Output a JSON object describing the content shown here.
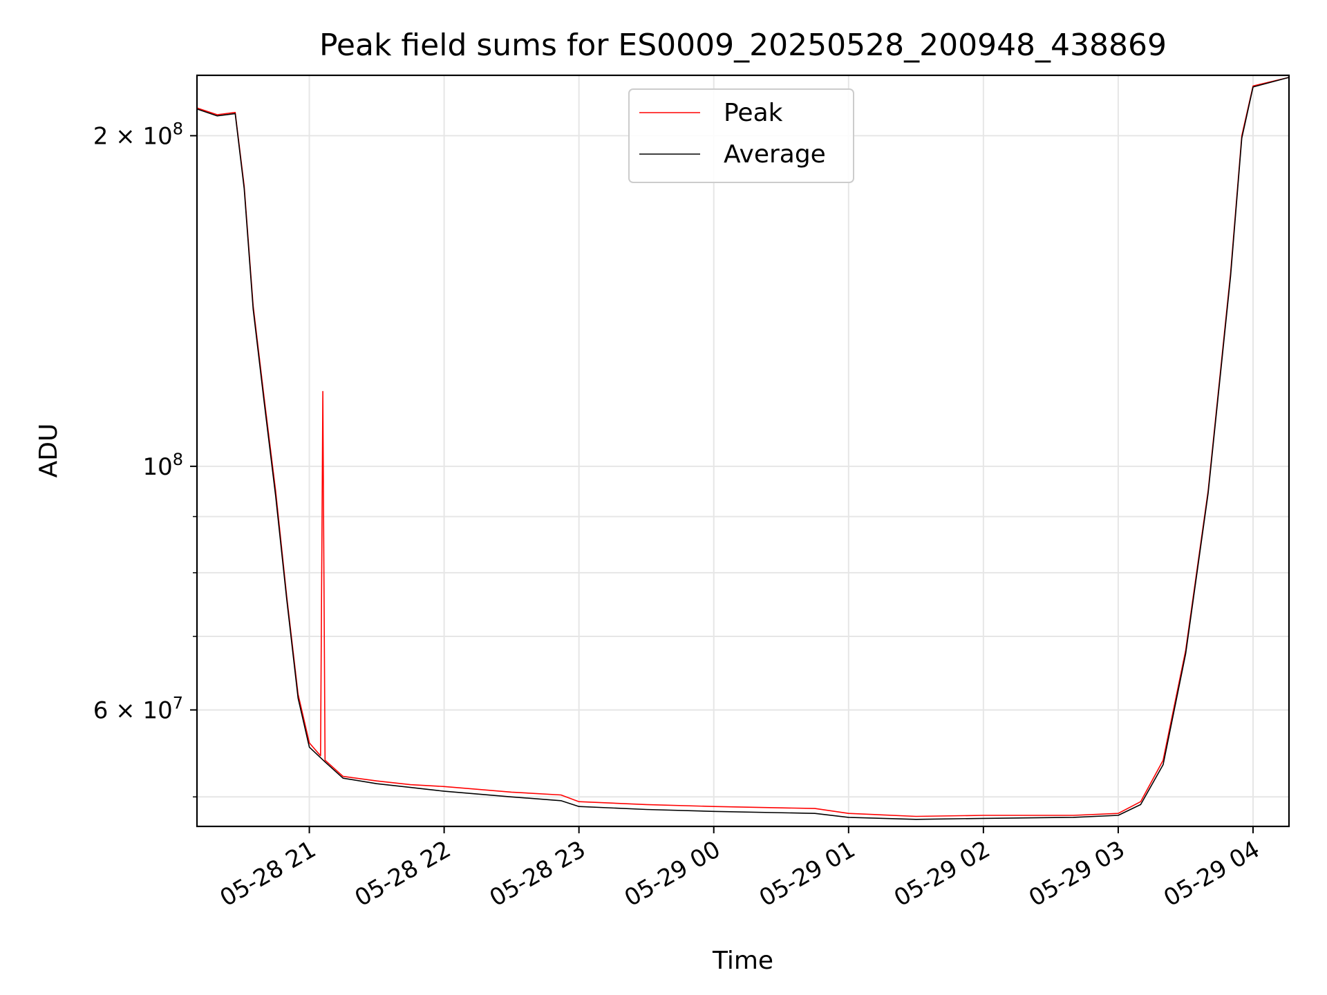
{
  "chart_data": {
    "type": "line",
    "title": "Peak field sums for ES0009_20250528_200948_438869",
    "xlabel": "Time",
    "ylabel": "ADU",
    "y_scale": "log",
    "grid": true,
    "legend_position": "upper center",
    "xlim": [
      "2025-05-28 20:10",
      "2025-05-29 04:16"
    ],
    "ylim": [
      47000000,
      227000000
    ],
    "x_ticks": [
      {
        "time": "2025-05-28 21:00",
        "label": "05-28 21"
      },
      {
        "time": "2025-05-28 22:00",
        "label": "05-28 22"
      },
      {
        "time": "2025-05-28 23:00",
        "label": "05-28 23"
      },
      {
        "time": "2025-05-29 00:00",
        "label": "05-29 00"
      },
      {
        "time": "2025-05-29 01:00",
        "label": "05-29 01"
      },
      {
        "time": "2025-05-29 02:00",
        "label": "05-29 02"
      },
      {
        "time": "2025-05-29 03:00",
        "label": "05-29 03"
      },
      {
        "time": "2025-05-29 04:00",
        "label": "05-29 04"
      }
    ],
    "y_major_ticks": [
      {
        "value": 60000000,
        "base": "6",
        "exp": "7"
      },
      {
        "value": 100000000,
        "base": "10",
        "exp": "8"
      },
      {
        "value": 200000000,
        "base": "2",
        "exp": "8"
      }
    ],
    "y_minor_ticks": [
      50000000,
      70000000,
      80000000,
      90000000
    ],
    "series": [
      {
        "name": "Peak",
        "color": "#ff0000",
        "points": [
          [
            "2025-05-28 20:10",
            212000000
          ],
          [
            "2025-05-28 20:19",
            209000000
          ],
          [
            "2025-05-28 20:27",
            210000000
          ],
          [
            "2025-05-28 20:31",
            180000000
          ],
          [
            "2025-05-28 20:35",
            140000000
          ],
          [
            "2025-05-28 20:40",
            115000000
          ],
          [
            "2025-05-28 20:45",
            95000000
          ],
          [
            "2025-05-28 20:50",
            76000000
          ],
          [
            "2025-05-28 20:55",
            62000000
          ],
          [
            "2025-05-28 21:00",
            56000000
          ],
          [
            "2025-05-28 21:05",
            54500000
          ],
          [
            "2025-05-28 21:06",
            117000000
          ],
          [
            "2025-05-28 21:07",
            54000000
          ],
          [
            "2025-05-28 21:15",
            52200000
          ],
          [
            "2025-05-28 21:30",
            51700000
          ],
          [
            "2025-05-28 21:45",
            51300000
          ],
          [
            "2025-05-28 22:00",
            51100000
          ],
          [
            "2025-05-28 22:30",
            50500000
          ],
          [
            "2025-05-28 22:52",
            50200000
          ],
          [
            "2025-05-28 23:00",
            49500000
          ],
          [
            "2025-05-28 23:30",
            49200000
          ],
          [
            "2025-05-29 00:00",
            49000000
          ],
          [
            "2025-05-29 00:45",
            48800000
          ],
          [
            "2025-05-29 01:00",
            48300000
          ],
          [
            "2025-05-29 01:30",
            48000000
          ],
          [
            "2025-05-29 02:00",
            48100000
          ],
          [
            "2025-05-29 02:40",
            48100000
          ],
          [
            "2025-05-29 03:00",
            48300000
          ],
          [
            "2025-05-29 03:10",
            49500000
          ],
          [
            "2025-05-29 03:20",
            54000000
          ],
          [
            "2025-05-29 03:30",
            68000000
          ],
          [
            "2025-05-29 03:40",
            95000000
          ],
          [
            "2025-05-29 03:50",
            150000000
          ],
          [
            "2025-05-29 03:55",
            200000000
          ],
          [
            "2025-05-29 04:00",
            222000000
          ],
          [
            "2025-05-29 04:16",
            226000000
          ]
        ]
      },
      {
        "name": "Average",
        "color": "#000000",
        "points": [
          [
            "2025-05-28 20:10",
            211500000
          ],
          [
            "2025-05-28 20:19",
            208500000
          ],
          [
            "2025-05-28 20:27",
            209500000
          ],
          [
            "2025-05-28 20:31",
            179000000
          ],
          [
            "2025-05-28 20:35",
            139000000
          ],
          [
            "2025-05-28 20:40",
            114000000
          ],
          [
            "2025-05-28 20:45",
            94000000
          ],
          [
            "2025-05-28 20:50",
            75500000
          ],
          [
            "2025-05-28 20:55",
            61500000
          ],
          [
            "2025-05-28 21:00",
            55500000
          ],
          [
            "2025-05-28 21:07",
            53800000
          ],
          [
            "2025-05-28 21:15",
            52000000
          ],
          [
            "2025-05-28 21:30",
            51400000
          ],
          [
            "2025-05-28 21:45",
            51000000
          ],
          [
            "2025-05-28 22:00",
            50600000
          ],
          [
            "2025-05-28 22:30",
            50000000
          ],
          [
            "2025-05-28 22:52",
            49600000
          ],
          [
            "2025-05-28 23:00",
            49000000
          ],
          [
            "2025-05-28 23:30",
            48700000
          ],
          [
            "2025-05-29 00:00",
            48500000
          ],
          [
            "2025-05-29 00:45",
            48300000
          ],
          [
            "2025-05-29 01:00",
            47900000
          ],
          [
            "2025-05-29 01:30",
            47700000
          ],
          [
            "2025-05-29 02:00",
            47800000
          ],
          [
            "2025-05-29 02:40",
            47900000
          ],
          [
            "2025-05-29 03:00",
            48100000
          ],
          [
            "2025-05-29 03:10",
            49200000
          ],
          [
            "2025-05-29 03:20",
            53500000
          ],
          [
            "2025-05-29 03:30",
            67500000
          ],
          [
            "2025-05-29 03:40",
            94500000
          ],
          [
            "2025-05-29 03:50",
            149000000
          ],
          [
            "2025-05-29 03:55",
            199000000
          ],
          [
            "2025-05-29 04:00",
            221500000
          ],
          [
            "2025-05-29 04:16",
            226000000
          ]
        ]
      }
    ]
  }
}
